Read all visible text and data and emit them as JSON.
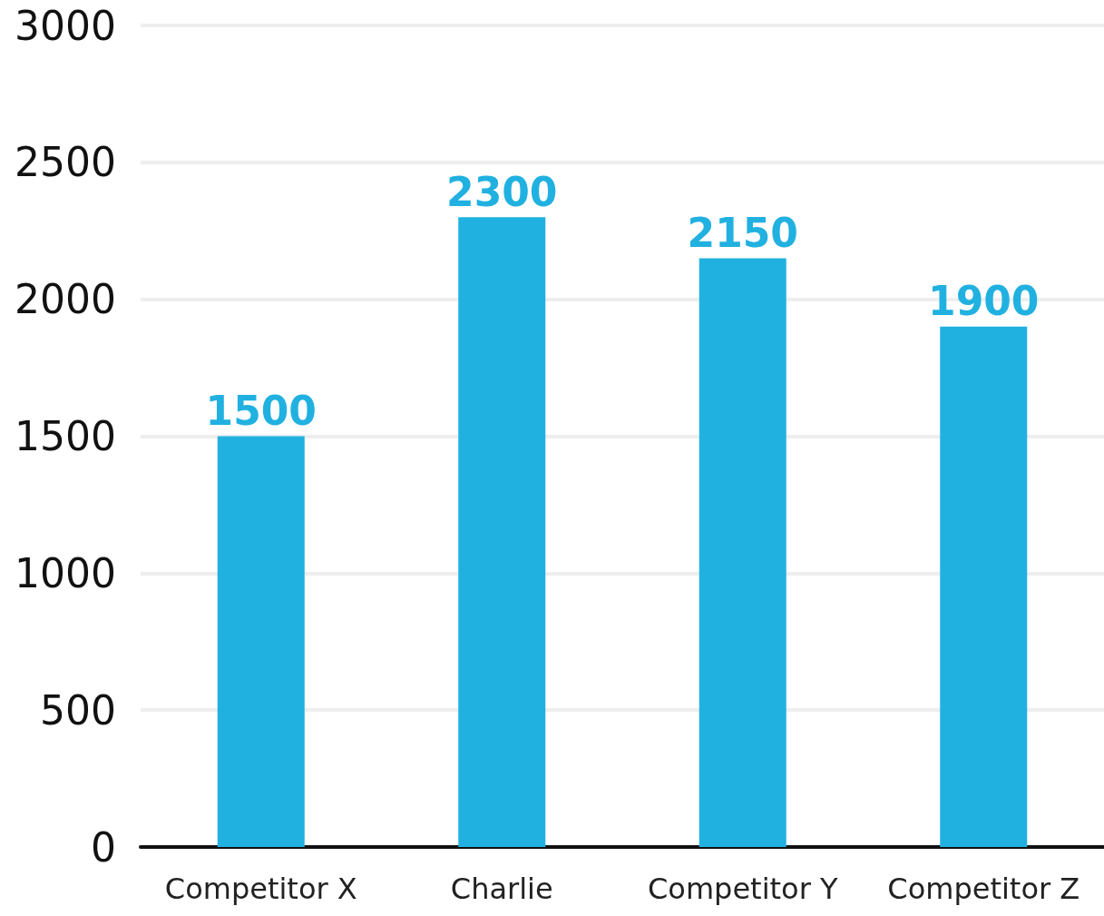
{
  "chart_data": {
    "type": "bar",
    "categories": [
      "Competitor X",
      "Charlie",
      "Competitor Y",
      "Competitor Z"
    ],
    "values": [
      1500,
      2300,
      2150,
      1900
    ],
    "color": "#21b1e0",
    "ylim": [
      0,
      3000
    ],
    "yticks": [
      0,
      500,
      1000,
      1500,
      2000,
      2500,
      3000
    ],
    "grid": "y",
    "data_labels": true
  }
}
